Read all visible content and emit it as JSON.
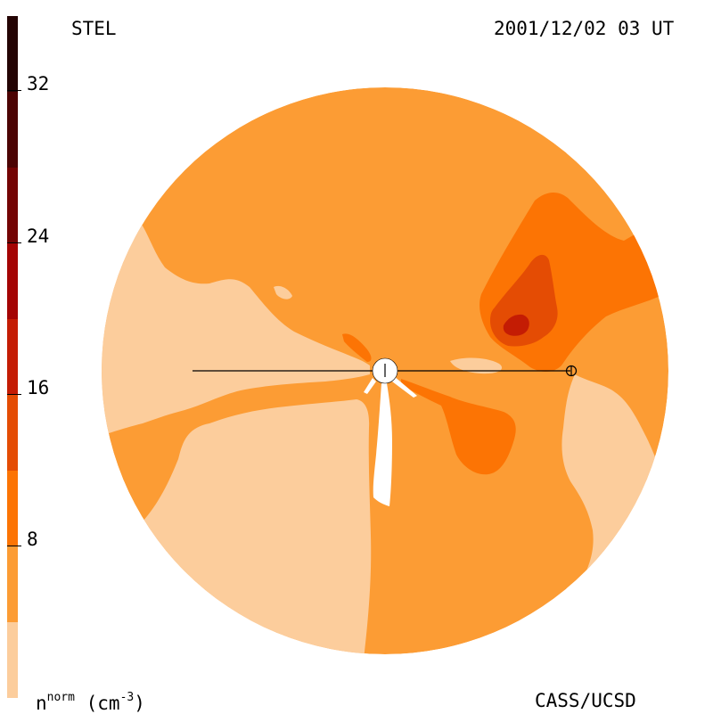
{
  "header": {
    "instrument": "STEL",
    "timestamp": "2001/12/02 03 UT"
  },
  "footer": {
    "units_label_prefix": "n",
    "units_label_superscript": "norm",
    "units_label_unit": "(cm",
    "units_label_exponent": "-3",
    "units_label_close": ")",
    "credit": "CASS/UCSD"
  },
  "colorbar": {
    "ticks": [
      "32",
      "24",
      "16",
      "8"
    ],
    "levels": [
      {
        "from": 0,
        "to": 4,
        "color": "#fccd9c"
      },
      {
        "from": 4,
        "to": 8,
        "color": "#fc9c34"
      },
      {
        "from": 8,
        "to": 12,
        "color": "#fc7404"
      },
      {
        "from": 12,
        "to": 16,
        "color": "#e44c04"
      },
      {
        "from": 16,
        "to": 20,
        "color": "#c41c04"
      },
      {
        "from": 20,
        "to": 24,
        "color": "#a40404"
      },
      {
        "from": 24,
        "to": 28,
        "color": "#740404"
      },
      {
        "from": 28,
        "to": 32,
        "color": "#4c0404"
      },
      {
        "from": 32,
        "to": 36,
        "color": "#240404"
      }
    ]
  },
  "colors": {
    "light": "#fccd9c",
    "base": "#fc9c34",
    "orange": "#fc7404",
    "dark_orange": "#e44c04",
    "red": "#c41c04"
  }
}
